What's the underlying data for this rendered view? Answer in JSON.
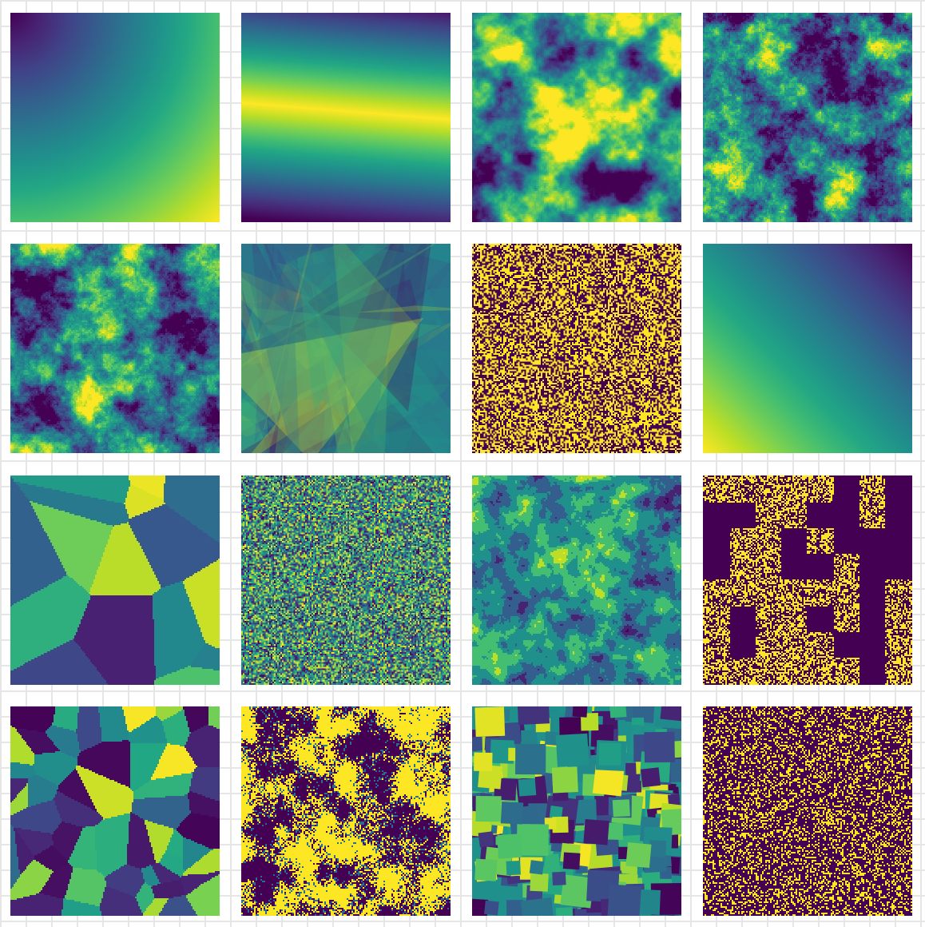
{
  "figure": {
    "colormap": "viridis",
    "grid": {
      "rows": 4,
      "cols": 4
    },
    "panels": [
      {
        "id": "p1",
        "pattern": "radial-gradient-from-top-left",
        "colors": [
          "#440154",
          "#21918c",
          "#fde725"
        ]
      },
      {
        "id": "p2",
        "pattern": "oblique-band",
        "colors": [
          "#440154",
          "#21918c",
          "#fde725"
        ]
      },
      {
        "id": "p3",
        "pattern": "smooth-fractal-noise",
        "colors": [
          "#31688e",
          "#35b779",
          "#fde725"
        ]
      },
      {
        "id": "p4",
        "pattern": "rough-fractal-noise",
        "colors": [
          "#3b528b",
          "#21918c",
          "#6ece58"
        ]
      },
      {
        "id": "p5",
        "pattern": "fractal-noise-dark-spots",
        "colors": [
          "#3b528b",
          "#35b779",
          "#fde725"
        ]
      },
      {
        "id": "p6",
        "pattern": "overlapping-translucent-shards",
        "colors": [
          "#440154",
          "#21918c",
          "#b5de2b"
        ]
      },
      {
        "id": "p7",
        "pattern": "binary-random-pixels",
        "colors": [
          "#440154",
          "#fde725"
        ]
      },
      {
        "id": "p8",
        "pattern": "linear-gradient-diagonal",
        "colors": [
          "#fde725",
          "#21918c",
          "#440154"
        ]
      },
      {
        "id": "p9",
        "pattern": "voronoi-large-cells",
        "colors": [
          "#440154",
          "#3b528b",
          "#21918c",
          "#5ec962",
          "#fde725"
        ]
      },
      {
        "id": "p10",
        "pattern": "multilevel-random-pixels",
        "colors": [
          "#440154",
          "#3b528b",
          "#21918c",
          "#5ec962",
          "#fde725"
        ]
      },
      {
        "id": "p11",
        "pattern": "irregular-patches",
        "colors": [
          "#440154",
          "#31688e",
          "#21918c",
          "#6ece58",
          "#fde725"
        ]
      },
      {
        "id": "p12",
        "pattern": "binary-noise-with-solid-blocks",
        "colors": [
          "#440154",
          "#fde725"
        ]
      },
      {
        "id": "p13",
        "pattern": "voronoi-small-cells",
        "colors": [
          "#440154",
          "#3b528b",
          "#21918c",
          "#5ec962",
          "#fde725"
        ]
      },
      {
        "id": "p14",
        "pattern": "clustered-binary-noise",
        "colors": [
          "#440154",
          "#fde725"
        ]
      },
      {
        "id": "p15",
        "pattern": "overlapping-rotated-squares",
        "colors": [
          "#440154",
          "#31688e",
          "#21918c",
          "#6ece58",
          "#fde725"
        ]
      },
      {
        "id": "p16",
        "pattern": "sparse-binary-pixels",
        "colors": [
          "#440154",
          "#fde725"
        ]
      }
    ]
  }
}
